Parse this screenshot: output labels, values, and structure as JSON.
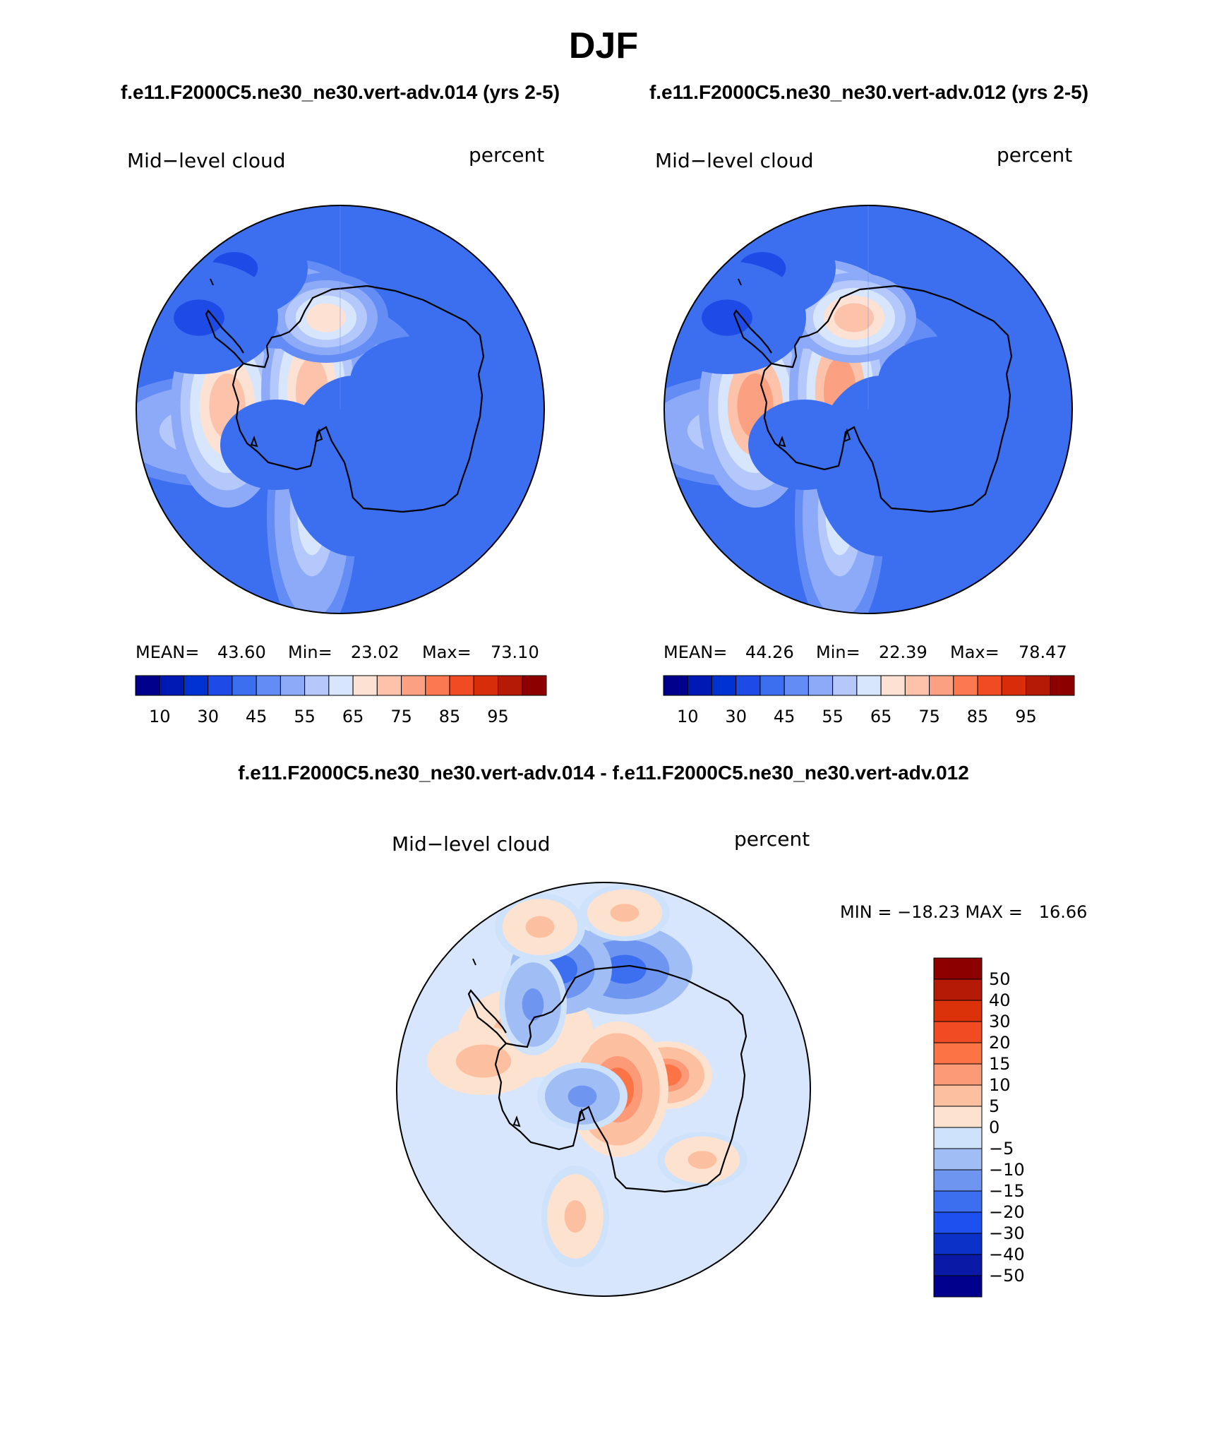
{
  "title": "DJF",
  "case_labels": {
    "left": "f.e11.F2000C5.ne30_ne30.vert-adv.014 (yrs 2-5)",
    "right": "f.e11.F2000C5.ne30_ne30.vert-adv.012 (yrs 2-5)",
    "diff": "f.e11.F2000C5.ne30_ne30.vert-adv.014 - f.e11.F2000C5.ne30_ne30.vert-adv.012"
  },
  "colors": {
    "abs": [
      "#00008c",
      "#0019b4",
      "#0032d2",
      "#1e4be6",
      "#3c6ef0",
      "#648cf5",
      "#8caaf8",
      "#b4c8fb",
      "#d7e6fc",
      "#fde1d2",
      "#fcc3aa",
      "#fca082",
      "#fc7850",
      "#f04b23",
      "#d72d0a",
      "#b41a05",
      "#8c0000"
    ],
    "diff": [
      "#00008c",
      "#0a1aa6",
      "#0a32c8",
      "#1e50f0",
      "#3c6ef0",
      "#6e96f0",
      "#a0bef5",
      "#cfe2fb",
      "#fde3cf",
      "#fcc0a0",
      "#fc9a78",
      "#fc7446",
      "#f04b23",
      "#dc320a",
      "#b41a05",
      "#8c0000"
    ],
    "base_left": "#3c6ef0",
    "base_right": "#3c6ef0",
    "base_diff": "#d7e6fc"
  },
  "chart_data": [
    {
      "type": "heatmap",
      "projection": "south-polar-stereographic",
      "left_label": "Mid−level cloud",
      "right_label": "percent",
      "stats": {
        "mean_label": "MEAN=",
        "mean": "43.60",
        "min_label": "Min=",
        "min": "23.02",
        "max_label": "Max=",
        "max": "73.10"
      },
      "colorbar": {
        "orientation": "horizontal",
        "levels": [
          5,
          10,
          20,
          30,
          40,
          45,
          50,
          55,
          60,
          65,
          70,
          75,
          80,
          85,
          90,
          95
        ],
        "labels": [
          "10",
          "30",
          "45",
          "55",
          "65",
          "75",
          "85",
          "95"
        ]
      },
      "field": {
        "base": 40,
        "features": [
          {
            "name": "weddell-high",
            "value": 52
          },
          {
            "name": "dronning-maud-high",
            "value": 55
          },
          {
            "name": "east-antarctic-plateau-max",
            "value": 68
          },
          {
            "name": "ross-ice-shelf-high",
            "value": 60
          },
          {
            "name": "marie-byrd-low",
            "value": 28
          },
          {
            "name": "wilkes-land-low",
            "value": 30
          },
          {
            "name": "amery-low",
            "value": 30
          }
        ]
      }
    },
    {
      "type": "heatmap",
      "projection": "south-polar-stereographic",
      "left_label": "Mid−level cloud",
      "right_label": "percent",
      "stats": {
        "mean_label": "MEAN=",
        "mean": "44.26",
        "min_label": "Min=",
        "min": "22.39",
        "max_label": "Max=",
        "max": "78.47"
      },
      "colorbar": {
        "orientation": "horizontal",
        "levels": [
          5,
          10,
          20,
          30,
          40,
          45,
          50,
          55,
          60,
          65,
          70,
          75,
          80,
          85,
          90,
          95
        ],
        "labels": [
          "10",
          "30",
          "45",
          "55",
          "65",
          "75",
          "85",
          "95"
        ]
      },
      "field": {
        "base": 40,
        "features": [
          {
            "name": "weddell-high",
            "value": 52
          },
          {
            "name": "dronning-maud-high",
            "value": 55
          },
          {
            "name": "east-antarctic-plateau-max",
            "value": 72
          },
          {
            "name": "ross-ice-shelf-high",
            "value": 65
          },
          {
            "name": "marie-byrd-low",
            "value": 28
          },
          {
            "name": "wilkes-land-low",
            "value": 30
          },
          {
            "name": "amery-low",
            "value": 30
          }
        ]
      }
    },
    {
      "type": "heatmap",
      "projection": "south-polar-stereographic",
      "left_label": "Mid−level cloud",
      "right_label": "percent",
      "stats_text": "MIN = −18.23 MAX =   16.66",
      "colorbar": {
        "orientation": "vertical",
        "levels": [
          -50,
          -40,
          -30,
          -20,
          -15,
          -10,
          -5,
          0,
          5,
          10,
          15,
          20,
          30,
          40,
          50
        ],
        "labels": [
          "50",
          "40",
          "30",
          "20",
          "15",
          "10",
          "5",
          "0",
          "−5",
          "−10",
          "−15",
          "−20",
          "−30",
          "−40",
          "−50"
        ]
      },
      "field": {
        "base": -2,
        "features": [
          {
            "name": "wilkes-land-max",
            "value": 16
          },
          {
            "name": "dronning-maud-max",
            "value": 8
          },
          {
            "name": "ross-sea-min",
            "value": -18
          },
          {
            "name": "amery-min",
            "value": -12
          },
          {
            "name": "marie-byrd-positive",
            "value": 6
          },
          {
            "name": "weddell-positive",
            "value": 5
          }
        ]
      }
    }
  ]
}
